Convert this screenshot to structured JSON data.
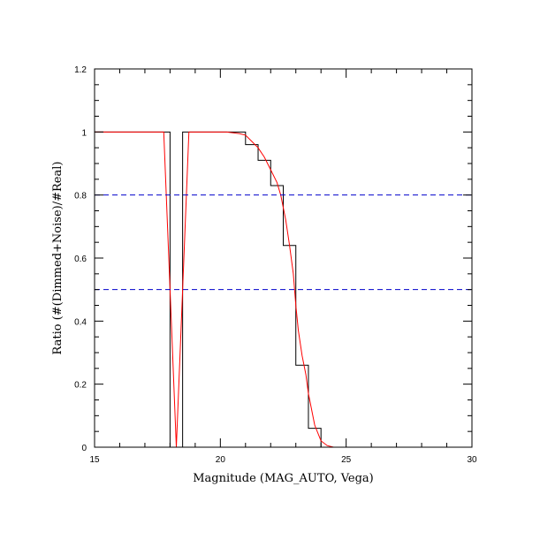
{
  "chart_data": {
    "type": "line",
    "xlabel": "Magnitude (MAG_AUTO, Vega)",
    "ylabel": "Ratio (#(Dimmed+Noise)/#Real)",
    "xlim": [
      15,
      30
    ],
    "ylim": [
      0,
      1.2
    ],
    "x_ticks": [
      "15",
      "20",
      "25",
      "30"
    ],
    "y_ticks": [
      "0",
      "0.2",
      "0.4",
      "0.6",
      "0.8",
      "1",
      "1.2"
    ],
    "x_tick_values": [
      15,
      20,
      25,
      30
    ],
    "y_tick_values": [
      0,
      0.2,
      0.4,
      0.6,
      0.8,
      1.0,
      1.2
    ],
    "x_minor_step": 1,
    "y_minor_step": 0.05,
    "grid": false,
    "series": [
      {
        "style": "histogram-steps",
        "color": "#000000",
        "bin_edges": [
          15,
          15.5,
          16,
          16.5,
          17,
          17.5,
          18,
          18.5,
          19,
          19.5,
          20,
          20.5,
          21,
          21.5,
          22,
          22.5,
          23,
          23.5,
          24,
          24.5,
          25,
          25.5,
          26,
          26.5,
          27,
          27.5,
          28,
          28.5,
          29,
          29.5,
          30
        ],
        "values": [
          1,
          1,
          1,
          1,
          1,
          1,
          0,
          1,
          1,
          1,
          1,
          1,
          0.96,
          0.91,
          0.83,
          0.64,
          0.26,
          0.06,
          0,
          0,
          0,
          0,
          0,
          0,
          0,
          0,
          0,
          0,
          0,
          0
        ]
      },
      {
        "style": "smooth-curve",
        "color": "#ff0000",
        "x": [
          15,
          15.75,
          16.25,
          16.75,
          17.25,
          17.75,
          18.25,
          18.75,
          19.25,
          19.75,
          20.25,
          20.75,
          21.0,
          21.25,
          21.5,
          21.75,
          22.0,
          22.25,
          22.4,
          22.6,
          22.75,
          22.9,
          23.0,
          23.1,
          23.25,
          23.4,
          23.5,
          23.75,
          24.0,
          24.25,
          24.5,
          25,
          26,
          27,
          28,
          29,
          30
        ],
        "y": [
          1,
          1,
          1,
          1,
          1,
          1,
          0,
          1,
          1,
          1,
          1,
          0.995,
          0.99,
          0.97,
          0.95,
          0.92,
          0.88,
          0.84,
          0.8,
          0.72,
          0.64,
          0.55,
          0.45,
          0.37,
          0.29,
          0.23,
          0.17,
          0.07,
          0.02,
          0.005,
          0,
          0,
          0,
          0,
          0,
          0,
          0
        ]
      },
      {
        "style": "dashed-line",
        "color": "#0000cc",
        "x": [
          15,
          30
        ],
        "y": [
          0.8,
          0.8
        ]
      },
      {
        "style": "dashed-line",
        "color": "#0000cc",
        "x": [
          15,
          30
        ],
        "y": [
          0.5,
          0.5
        ]
      }
    ]
  }
}
